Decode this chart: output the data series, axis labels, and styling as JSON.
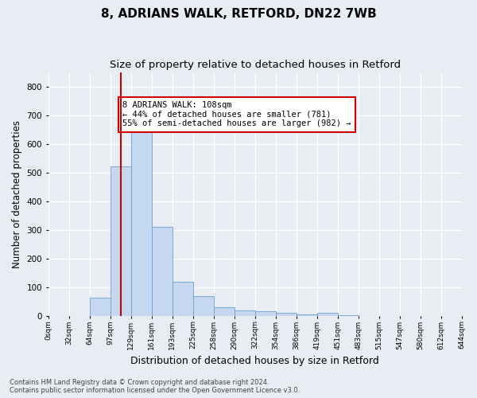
{
  "title1": "8, ADRIANS WALK, RETFORD, DN22 7WB",
  "title2": "Size of property relative to detached houses in Retford",
  "xlabel": "Distribution of detached houses by size in Retford",
  "ylabel": "Number of detached properties",
  "footer1": "Contains HM Land Registry data © Crown copyright and database right 2024.",
  "footer2": "Contains public sector information licensed under the Open Government Licence v3.0.",
  "bin_labels": [
    "0sqm",
    "32sqm",
    "64sqm",
    "97sqm",
    "129sqm",
    "161sqm",
    "193sqm",
    "225sqm",
    "258sqm",
    "290sqm",
    "322sqm",
    "354sqm",
    "386sqm",
    "419sqm",
    "451sqm",
    "483sqm",
    "515sqm",
    "547sqm",
    "580sqm",
    "612sqm",
    "644sqm"
  ],
  "bar_heights": [
    0,
    0,
    62,
    520,
    640,
    310,
    120,
    70,
    30,
    20,
    15,
    10,
    5,
    10,
    2,
    0,
    0,
    0,
    0,
    0
  ],
  "bar_color": "#c5d8ef",
  "bar_edge_color": "#6a9fd0",
  "property_bin_index": 3.5,
  "property_label": "8 ADRIANS WALK: 108sqm",
  "pct_smaller": 44,
  "n_smaller": 781,
  "pct_larger": 55,
  "n_larger": 982,
  "annotation_box_color": "#cc0000",
  "vline_color": "#cc0000",
  "ylim": [
    0,
    850
  ],
  "yticks": [
    0,
    100,
    200,
    300,
    400,
    500,
    600,
    700,
    800
  ],
  "bg_color": "#e8edf4",
  "grid_color": "#ffffff",
  "title1_fontsize": 11,
  "title2_fontsize": 9.5,
  "xlabel_fontsize": 9,
  "ylabel_fontsize": 8.5
}
